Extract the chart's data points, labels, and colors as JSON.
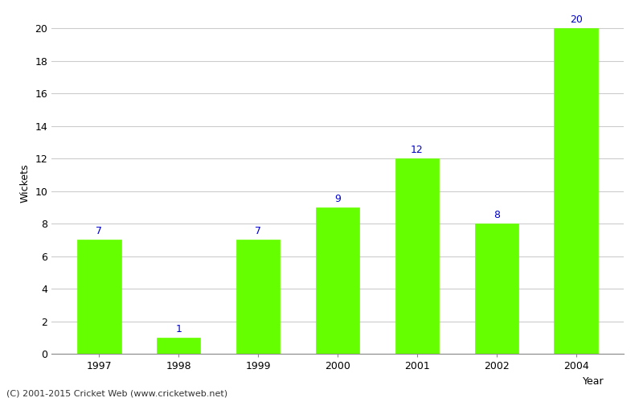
{
  "years": [
    "1997",
    "1998",
    "1999",
    "2000",
    "2001",
    "2002",
    "2004"
  ],
  "values": [
    7,
    1,
    7,
    9,
    12,
    8,
    20
  ],
  "bar_color": "#66ff00",
  "bar_edge_color": "#66ff00",
  "label_color": "#0000cc",
  "xlabel": "Year",
  "ylabel": "Wickets",
  "ylim": [
    0,
    21
  ],
  "yticks": [
    0,
    2,
    4,
    6,
    8,
    10,
    12,
    14,
    16,
    18,
    20
  ],
  "grid_color": "#cccccc",
  "bg_color": "#ffffff",
  "footer_text": "(C) 2001-2015 Cricket Web (www.cricketweb.net)",
  "label_fontsize": 9,
  "axis_label_fontsize": 9,
  "tick_fontsize": 9,
  "footer_fontsize": 8,
  "bar_width": 0.55
}
